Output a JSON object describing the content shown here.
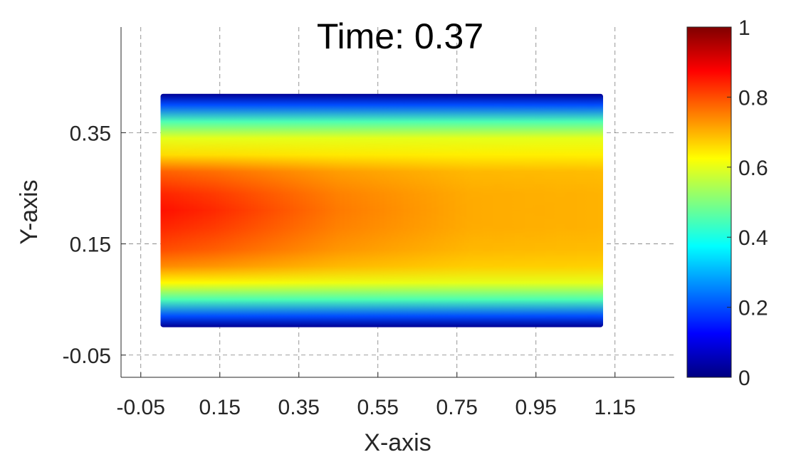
{
  "chart_data": {
    "type": "heatmap",
    "title": "Time: 0.37",
    "xlabel": "X-axis",
    "ylabel": "Y-axis",
    "xlim": [
      -0.1,
      1.3
    ],
    "ylim": [
      -0.09,
      0.54
    ],
    "x_ticks": [
      -0.05,
      0.15,
      0.35,
      0.55,
      0.75,
      0.95,
      1.15
    ],
    "x_tick_labels": [
      "-0.05",
      "0.15",
      "0.35",
      "0.55",
      "0.75",
      "0.95",
      "1.15"
    ],
    "y_ticks": [
      -0.05,
      0.15,
      0.35
    ],
    "y_tick_labels": [
      "-0.05",
      "0.15",
      "0.35"
    ],
    "grid": true,
    "grid_style": "dashed",
    "colormap": "jet",
    "field_domain": {
      "x": [
        0.0,
        1.12
      ],
      "y": [
        0.0,
        0.42
      ]
    },
    "profile_y": [
      0.0,
      0.02,
      0.05,
      0.08,
      0.11,
      0.14,
      0.18,
      0.21,
      0.24,
      0.28,
      0.31,
      0.34,
      0.37,
      0.4,
      0.42
    ],
    "profile_inlet": [
      0.02,
      0.2,
      0.45,
      0.63,
      0.74,
      0.8,
      0.84,
      0.86,
      0.84,
      0.78,
      0.66,
      0.6,
      0.45,
      0.2,
      0.02
    ],
    "profile_outlet": [
      0.02,
      0.2,
      0.45,
      0.6,
      0.67,
      0.69,
      0.7,
      0.7,
      0.7,
      0.69,
      0.64,
      0.6,
      0.45,
      0.2,
      0.02
    ],
    "colorbar": {
      "range": [
        0,
        1
      ],
      "ticks": [
        0,
        0.2,
        0.4,
        0.6,
        0.8,
        1
      ],
      "tick_labels": [
        "0",
        "0.2",
        "0.4",
        "0.6",
        "0.8",
        "1"
      ]
    }
  }
}
